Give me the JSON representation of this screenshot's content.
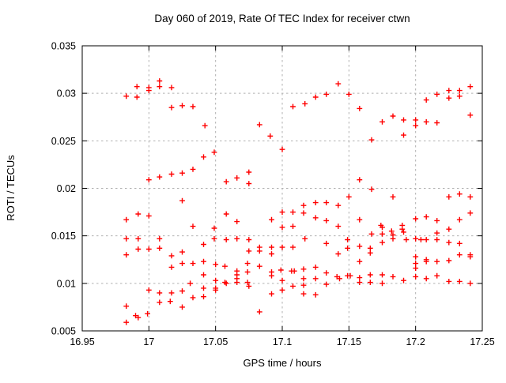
{
  "chart_data": {
    "type": "scatter",
    "title": "Day 060 of 2019, Rate Of TEC Index for receiver ctwn",
    "xlabel": "GPS time / hours",
    "ylabel": "ROTI / TECUs",
    "xlim": [
      16.95,
      17.25
    ],
    "ylim": [
      0.005,
      0.035
    ],
    "xticks": [
      16.95,
      17.0,
      17.05,
      17.1,
      17.15,
      17.2,
      17.25
    ],
    "xtick_labels": [
      "16.95",
      "17",
      "17.05",
      "17.1",
      "17.15",
      "17.2",
      "17.25"
    ],
    "yticks": [
      0.005,
      0.01,
      0.015,
      0.02,
      0.025,
      0.03,
      0.035
    ],
    "ytick_labels": [
      "0.005",
      "0.01",
      "0.015",
      "0.02",
      "0.025",
      "0.03",
      "0.035"
    ],
    "grid": true,
    "grid_color": "#b0b0b0",
    "border_color": "#000000",
    "legend": false,
    "marker": "plus",
    "marker_color": "#ff0000",
    "series": [
      {
        "name": "ROTI",
        "points": [
          [
            16.983,
            0.0297
          ],
          [
            16.983,
            0.0167
          ],
          [
            16.983,
            0.0147
          ],
          [
            16.983,
            0.013
          ],
          [
            16.983,
            0.0076
          ],
          [
            16.983,
            0.0059
          ],
          [
            16.99,
            0.0066
          ],
          [
            16.991,
            0.0307
          ],
          [
            16.991,
            0.0296
          ],
          [
            16.992,
            0.0173
          ],
          [
            16.992,
            0.0147
          ],
          [
            16.992,
            0.0136
          ],
          [
            16.992,
            0.0064
          ],
          [
            16.999,
            0.0068
          ],
          [
            17.0,
            0.0306
          ],
          [
            17.0,
            0.0303
          ],
          [
            17.0,
            0.0209
          ],
          [
            17.0,
            0.0171
          ],
          [
            17.0,
            0.0136
          ],
          [
            17.0,
            0.0093
          ],
          [
            17.008,
            0.0313
          ],
          [
            17.008,
            0.0307
          ],
          [
            17.008,
            0.0212
          ],
          [
            17.008,
            0.0147
          ],
          [
            17.008,
            0.0137
          ],
          [
            17.008,
            0.009
          ],
          [
            17.008,
            0.008
          ],
          [
            17.016,
            0.0081
          ],
          [
            17.017,
            0.0306
          ],
          [
            17.017,
            0.0285
          ],
          [
            17.017,
            0.0215
          ],
          [
            17.017,
            0.0129
          ],
          [
            17.017,
            0.0117
          ],
          [
            17.017,
            0.009
          ],
          [
            17.025,
            0.0287
          ],
          [
            17.025,
            0.0216
          ],
          [
            17.025,
            0.0187
          ],
          [
            17.025,
            0.0133
          ],
          [
            17.025,
            0.0121
          ],
          [
            17.025,
            0.0092
          ],
          [
            17.025,
            0.0075
          ],
          [
            17.031,
            0.01
          ],
          [
            17.033,
            0.0286
          ],
          [
            17.033,
            0.022
          ],
          [
            17.033,
            0.016
          ],
          [
            17.033,
            0.0121
          ],
          [
            17.033,
            0.0085
          ],
          [
            17.041,
            0.0233
          ],
          [
            17.041,
            0.0141
          ],
          [
            17.041,
            0.0123
          ],
          [
            17.041,
            0.0109
          ],
          [
            17.041,
            0.0095
          ],
          [
            17.041,
            0.0086
          ],
          [
            17.042,
            0.0266
          ],
          [
            17.049,
            0.0238
          ],
          [
            17.049,
            0.0158
          ],
          [
            17.049,
            0.0147
          ],
          [
            17.05,
            0.012
          ],
          [
            17.05,
            0.0103
          ],
          [
            17.05,
            0.0095
          ],
          [
            17.05,
            0.0093
          ],
          [
            17.057,
            0.0118
          ],
          [
            17.057,
            0.0101
          ],
          [
            17.058,
            0.0207
          ],
          [
            17.058,
            0.0173
          ],
          [
            17.058,
            0.0146
          ],
          [
            17.058,
            0.01
          ],
          [
            17.066,
            0.0211
          ],
          [
            17.066,
            0.0165
          ],
          [
            17.066,
            0.0147
          ],
          [
            17.066,
            0.0113
          ],
          [
            17.066,
            0.0109
          ],
          [
            17.066,
            0.0105
          ],
          [
            17.066,
            0.0101
          ],
          [
            17.074,
            0.0121
          ],
          [
            17.074,
            0.0112
          ],
          [
            17.074,
            0.0101
          ],
          [
            17.075,
            0.0217
          ],
          [
            17.075,
            0.0205
          ],
          [
            17.075,
            0.0146
          ],
          [
            17.075,
            0.0134
          ],
          [
            17.075,
            0.0097
          ],
          [
            17.083,
            0.0267
          ],
          [
            17.083,
            0.0138
          ],
          [
            17.083,
            0.0134
          ],
          [
            17.083,
            0.0118
          ],
          [
            17.083,
            0.007
          ],
          [
            17.091,
            0.0255
          ],
          [
            17.092,
            0.0167
          ],
          [
            17.092,
            0.0138
          ],
          [
            17.092,
            0.0131
          ],
          [
            17.092,
            0.0112
          ],
          [
            17.092,
            0.0108
          ],
          [
            17.092,
            0.0089
          ],
          [
            17.099,
            0.0114
          ],
          [
            17.1,
            0.0241
          ],
          [
            17.1,
            0.0175
          ],
          [
            17.1,
            0.0159
          ],
          [
            17.1,
            0.0138
          ],
          [
            17.1,
            0.0103
          ],
          [
            17.1,
            0.0093
          ],
          [
            17.107,
            0.0113
          ],
          [
            17.109,
            0.0113
          ],
          [
            17.108,
            0.0286
          ],
          [
            17.108,
            0.0175
          ],
          [
            17.108,
            0.016
          ],
          [
            17.108,
            0.0138
          ],
          [
            17.108,
            0.0097
          ],
          [
            17.116,
            0.0182
          ],
          [
            17.116,
            0.0174
          ],
          [
            17.116,
            0.0115
          ],
          [
            17.116,
            0.0105
          ],
          [
            17.116,
            0.0098
          ],
          [
            17.116,
            0.0089
          ],
          [
            17.117,
            0.0289
          ],
          [
            17.117,
            0.0147
          ],
          [
            17.125,
            0.0296
          ],
          [
            17.125,
            0.0185
          ],
          [
            17.125,
            0.0169
          ],
          [
            17.125,
            0.0117
          ],
          [
            17.125,
            0.0105
          ],
          [
            17.125,
            0.0088
          ],
          [
            17.133,
            0.0299
          ],
          [
            17.133,
            0.0185
          ],
          [
            17.133,
            0.0166
          ],
          [
            17.133,
            0.0142
          ],
          [
            17.133,
            0.0111
          ],
          [
            17.133,
            0.0099
          ],
          [
            17.141,
            0.0107
          ],
          [
            17.143,
            0.0105
          ],
          [
            17.142,
            0.031
          ],
          [
            17.142,
            0.0182
          ],
          [
            17.142,
            0.016
          ],
          [
            17.142,
            0.0131
          ],
          [
            17.149,
            0.0146
          ],
          [
            17.149,
            0.0137
          ],
          [
            17.149,
            0.0108
          ],
          [
            17.151,
            0.0108
          ],
          [
            17.15,
            0.0299
          ],
          [
            17.15,
            0.0191
          ],
          [
            17.158,
            0.0284
          ],
          [
            17.158,
            0.0209
          ],
          [
            17.158,
            0.0167
          ],
          [
            17.158,
            0.0139
          ],
          [
            17.158,
            0.0123
          ],
          [
            17.158,
            0.0106
          ],
          [
            17.158,
            0.0101
          ],
          [
            17.166,
            0.0137
          ],
          [
            17.166,
            0.0132
          ],
          [
            17.166,
            0.0109
          ],
          [
            17.166,
            0.0101
          ],
          [
            17.167,
            0.0251
          ],
          [
            17.167,
            0.0199
          ],
          [
            17.167,
            0.0152
          ],
          [
            17.174,
            0.0161
          ],
          [
            17.175,
            0.0159
          ],
          [
            17.175,
            0.027
          ],
          [
            17.175,
            0.0152
          ],
          [
            17.175,
            0.0143
          ],
          [
            17.175,
            0.0109
          ],
          [
            17.175,
            0.01
          ],
          [
            17.182,
            0.0155
          ],
          [
            17.183,
            0.0276
          ],
          [
            17.183,
            0.0191
          ],
          [
            17.183,
            0.0151
          ],
          [
            17.183,
            0.0147
          ],
          [
            17.183,
            0.0107
          ],
          [
            17.19,
            0.0161
          ],
          [
            17.19,
            0.0157
          ],
          [
            17.191,
            0.0272
          ],
          [
            17.191,
            0.0256
          ],
          [
            17.191,
            0.0154
          ],
          [
            17.191,
            0.0103
          ],
          [
            17.193,
            0.0146
          ],
          [
            17.2,
            0.0272
          ],
          [
            17.2,
            0.0266
          ],
          [
            17.2,
            0.0168
          ],
          [
            17.2,
            0.0147
          ],
          [
            17.2,
            0.0128
          ],
          [
            17.2,
            0.0121
          ],
          [
            17.2,
            0.0116
          ],
          [
            17.2,
            0.0107
          ],
          [
            17.204,
            0.0146
          ],
          [
            17.208,
            0.0293
          ],
          [
            17.208,
            0.027
          ],
          [
            17.208,
            0.017
          ],
          [
            17.208,
            0.0146
          ],
          [
            17.208,
            0.0125
          ],
          [
            17.208,
            0.0123
          ],
          [
            17.208,
            0.0105
          ],
          [
            17.216,
            0.0299
          ],
          [
            17.216,
            0.0269
          ],
          [
            17.216,
            0.0166
          ],
          [
            17.216,
            0.0153
          ],
          [
            17.216,
            0.0146
          ],
          [
            17.216,
            0.0123
          ],
          [
            17.216,
            0.0108
          ],
          [
            17.225,
            0.0303
          ],
          [
            17.225,
            0.0295
          ],
          [
            17.225,
            0.0191
          ],
          [
            17.225,
            0.0157
          ],
          [
            17.225,
            0.0143
          ],
          [
            17.225,
            0.0124
          ],
          [
            17.225,
            0.0102
          ],
          [
            17.233,
            0.0303
          ],
          [
            17.233,
            0.0297
          ],
          [
            17.233,
            0.0194
          ],
          [
            17.233,
            0.0167
          ],
          [
            17.233,
            0.0142
          ],
          [
            17.233,
            0.013
          ],
          [
            17.233,
            0.0102
          ],
          [
            17.241,
            0.0307
          ],
          [
            17.241,
            0.0277
          ],
          [
            17.241,
            0.0191
          ],
          [
            17.241,
            0.0174
          ],
          [
            17.241,
            0.013
          ],
          [
            17.241,
            0.0128
          ],
          [
            17.241,
            0.01
          ]
        ]
      }
    ]
  }
}
